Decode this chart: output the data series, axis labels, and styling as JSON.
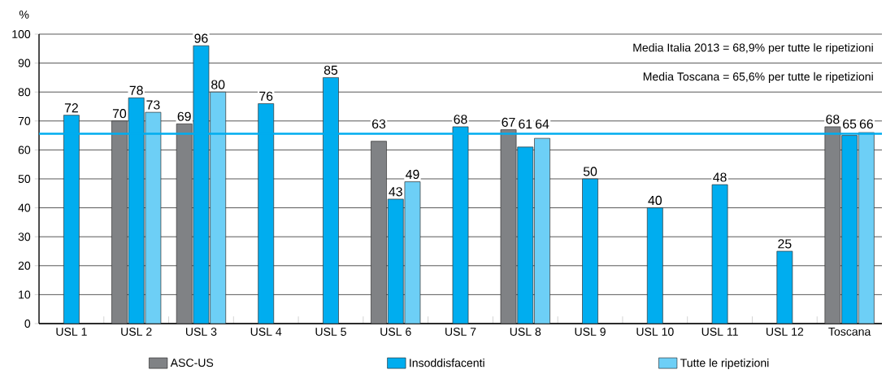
{
  "chart_data": {
    "type": "bar",
    "ylabel": "%",
    "categories": [
      "USL 1",
      "USL 2",
      "USL 3",
      "USL 4",
      "USL 5",
      "USL 6",
      "USL 7",
      "USL 8",
      "USL 9",
      "USL 10",
      "USL 11",
      "USL 12",
      "Toscana"
    ],
    "series": [
      {
        "name": "ASC-US",
        "color": "#808285",
        "values": [
          null,
          70,
          69,
          null,
          null,
          63,
          null,
          67,
          null,
          null,
          null,
          null,
          68
        ]
      },
      {
        "name": "Insoddisfacenti",
        "color": "#00adef",
        "values": [
          72,
          78,
          96,
          76,
          85,
          43,
          68,
          61,
          50,
          40,
          48,
          25,
          65
        ]
      },
      {
        "name": "Tutte le ripetizioni",
        "color": "#6dcff6",
        "values": [
          null,
          73,
          80,
          null,
          null,
          49,
          null,
          64,
          null,
          null,
          null,
          null,
          66
        ]
      }
    ],
    "ylim": [
      0,
      100
    ],
    "yticks": [
      0,
      10,
      20,
      30,
      40,
      50,
      60,
      70,
      80,
      90,
      100
    ],
    "grid": "y",
    "legend": "bottom",
    "data_labels": true,
    "ref_lines": [
      {
        "axis": "y",
        "value": 65.6,
        "color": "#00adef"
      }
    ],
    "annotations": [
      "Media Italia 2013 = 68,9% per tutte le ripetizioni",
      "Media Toscana = 65,6% per tutte le ripetizioni"
    ]
  }
}
